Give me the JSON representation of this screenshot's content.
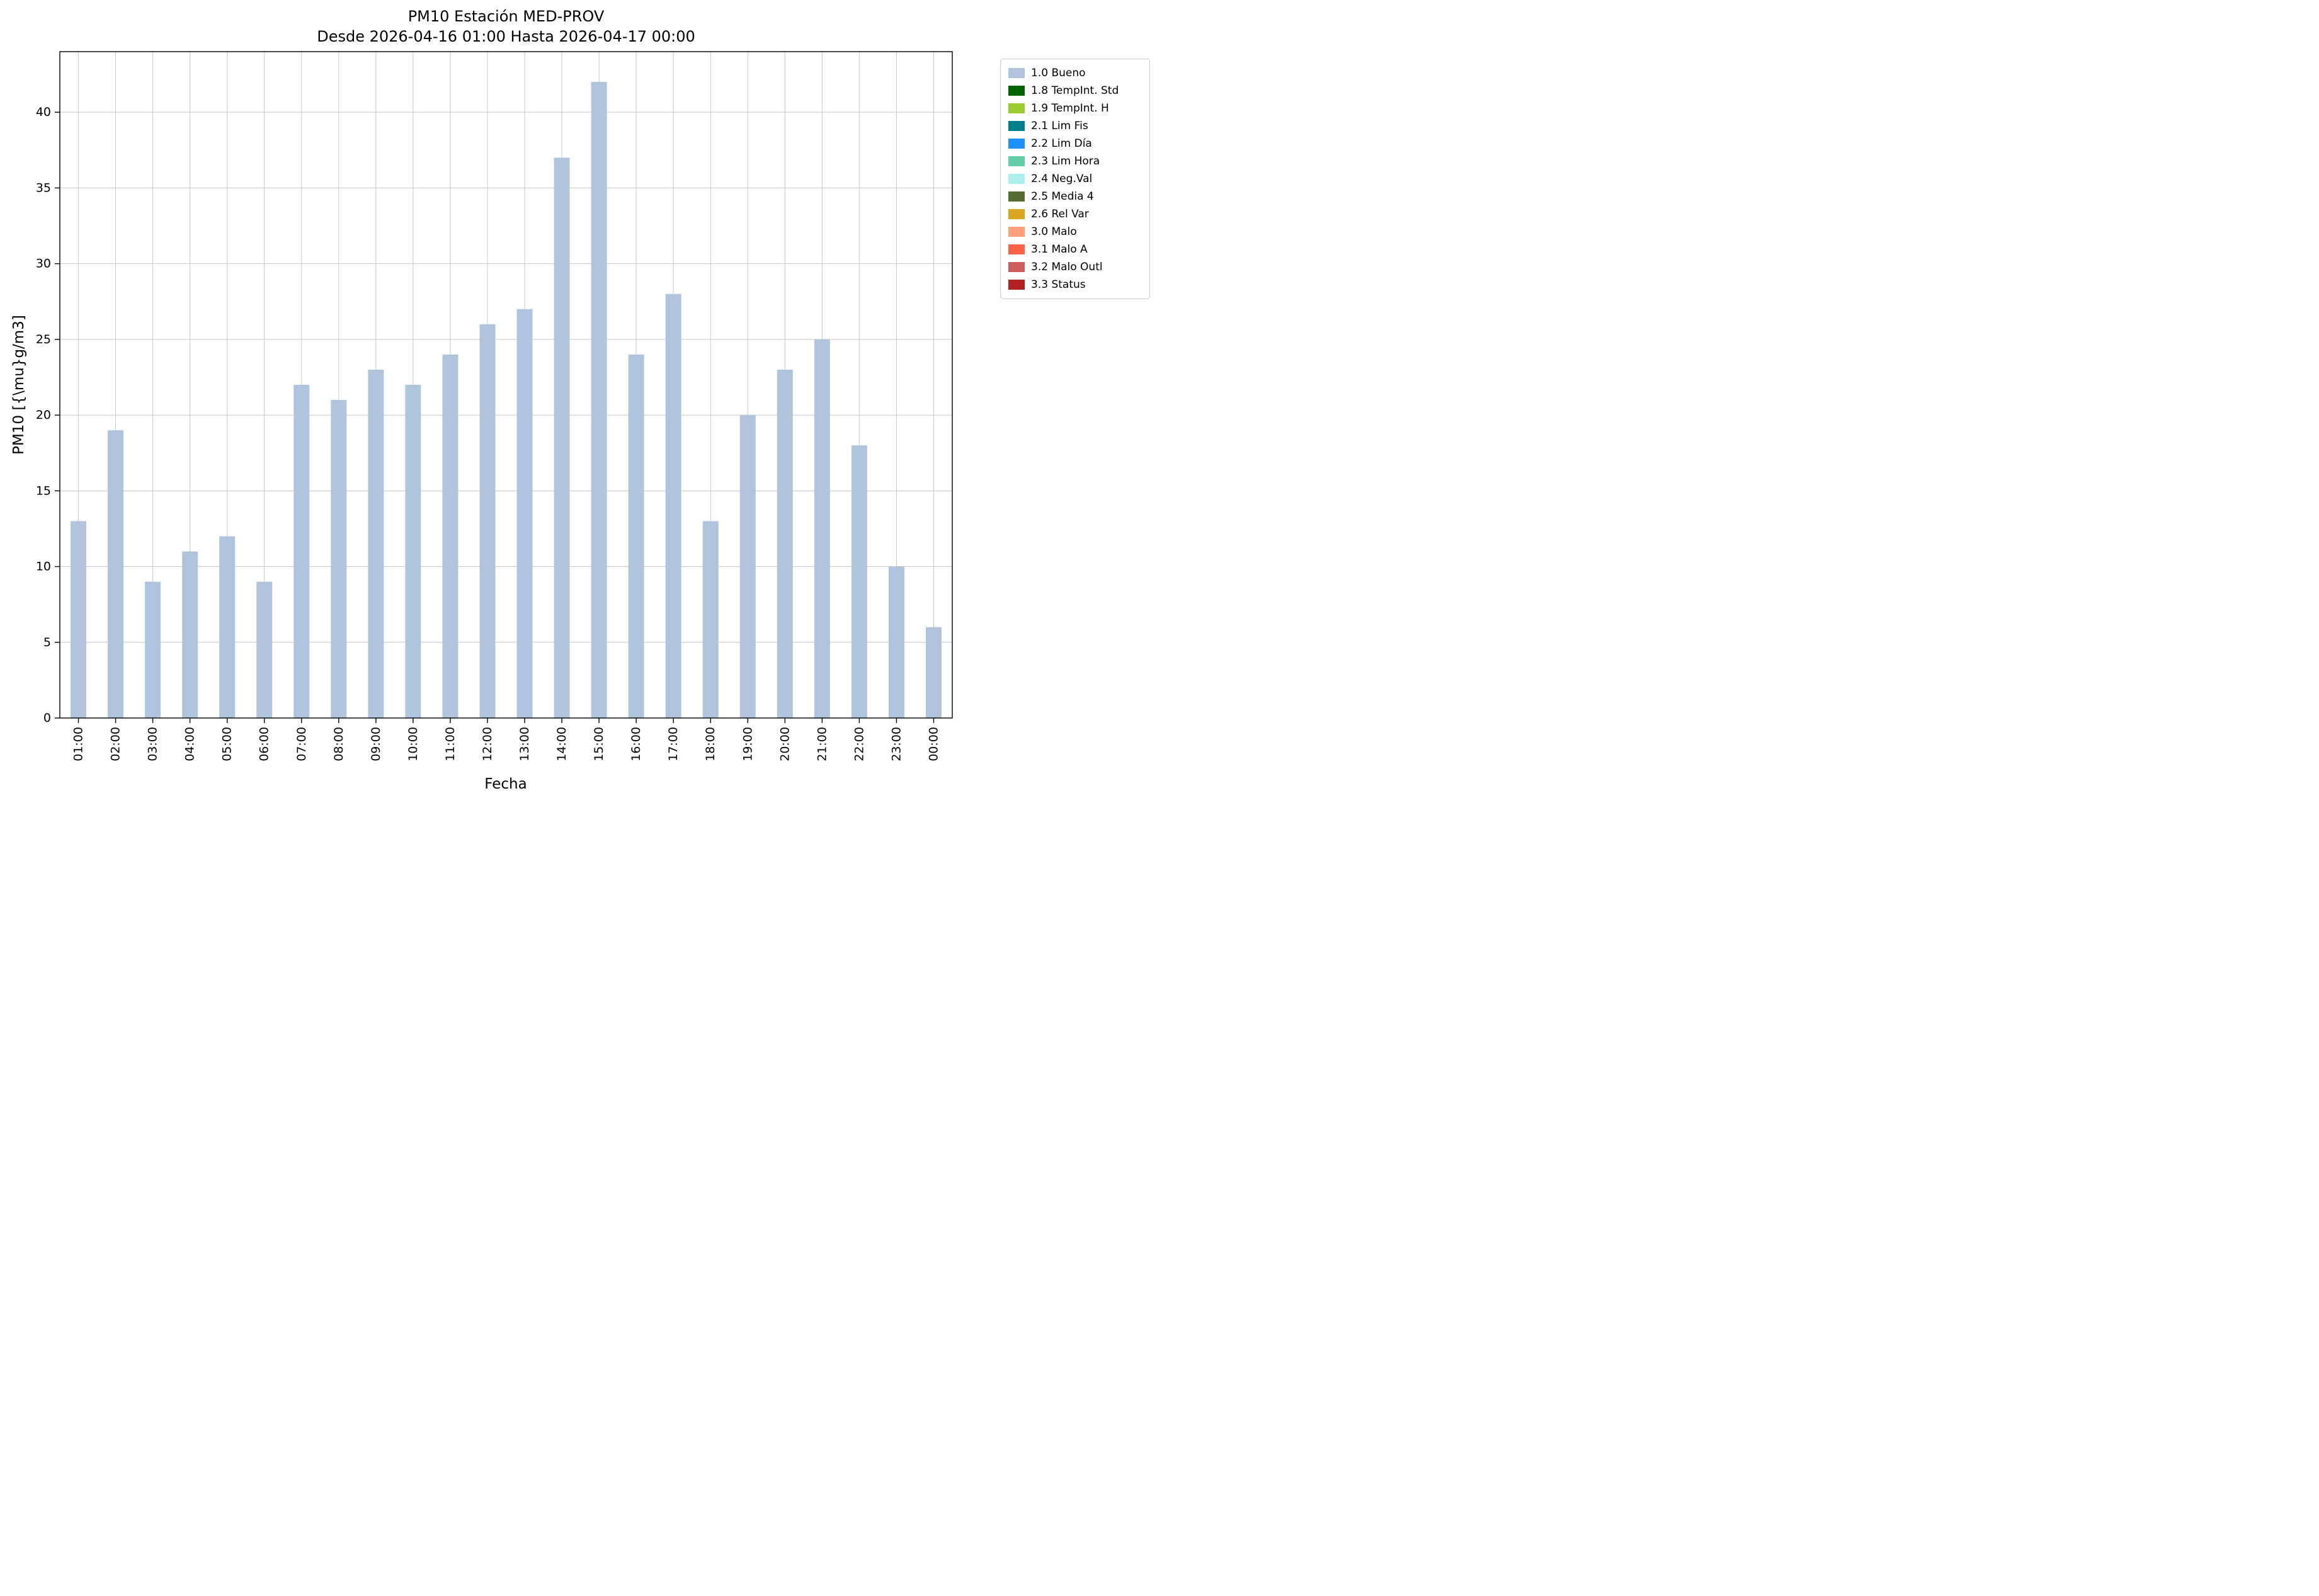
{
  "figure": {
    "title": "PM10 Estación MED-PROV",
    "subtitle": "Desde 2026-04-16 01:00 Hasta 2026-04-17 00:00",
    "xlabel": "Fecha",
    "ylabel": "PM10 [{\\mu}g/m3]"
  },
  "chart_data": {
    "type": "bar",
    "title": "PM10 Estación MED-PROV",
    "subtitle": "Desde 2026-04-16 01:00 Hasta 2026-04-17 00:00",
    "xlabel": "Fecha",
    "ylabel": "PM10 [{\\mu}g/m3]",
    "categories": [
      "01:00",
      "02:00",
      "03:00",
      "04:00",
      "05:00",
      "06:00",
      "07:00",
      "08:00",
      "09:00",
      "10:00",
      "11:00",
      "12:00",
      "13:00",
      "14:00",
      "15:00",
      "16:00",
      "17:00",
      "18:00",
      "19:00",
      "20:00",
      "21:00",
      "22:00",
      "23:00",
      "00:00"
    ],
    "values": [
      13,
      19,
      9,
      11,
      12,
      9,
      22,
      21,
      23,
      22,
      24,
      26,
      27,
      37,
      42,
      24,
      28,
      13,
      20,
      23,
      25,
      18,
      10,
      6
    ],
    "series_name": "1.0 Bueno",
    "bar_color": "#B0C4DE",
    "ylim": [
      0,
      44
    ],
    "yticks": [
      0,
      5,
      10,
      15,
      20,
      25,
      30,
      35,
      40
    ],
    "grid": true,
    "legend_position": "outside upper right",
    "legend": [
      {
        "label": "1.0 Bueno",
        "color": "#B0C4DE"
      },
      {
        "label": "1.8 TempInt. Std",
        "color": "#006400"
      },
      {
        "label": "1.9 TempInt. H",
        "color": "#9ACD32"
      },
      {
        "label": "2.1 Lim Fis",
        "color": "#00808C"
      },
      {
        "label": "2.2 Lim Día",
        "color": "#1E90FF"
      },
      {
        "label": "2.3 Lim Hora",
        "color": "#66CDAA"
      },
      {
        "label": "2.4 Neg.Val",
        "color": "#AFEEEE"
      },
      {
        "label": "2.5 Media 4",
        "color": "#556B2F"
      },
      {
        "label": "2.6 Rel Var",
        "color": "#DAA520"
      },
      {
        "label": "3.0 Malo",
        "color": "#FFA07A"
      },
      {
        "label": "3.1 Malo A",
        "color": "#FF6347"
      },
      {
        "label": "3.2 Malo Outl",
        "color": "#CD5C5C"
      },
      {
        "label": "3.3 Status",
        "color": "#B22222"
      }
    ]
  }
}
